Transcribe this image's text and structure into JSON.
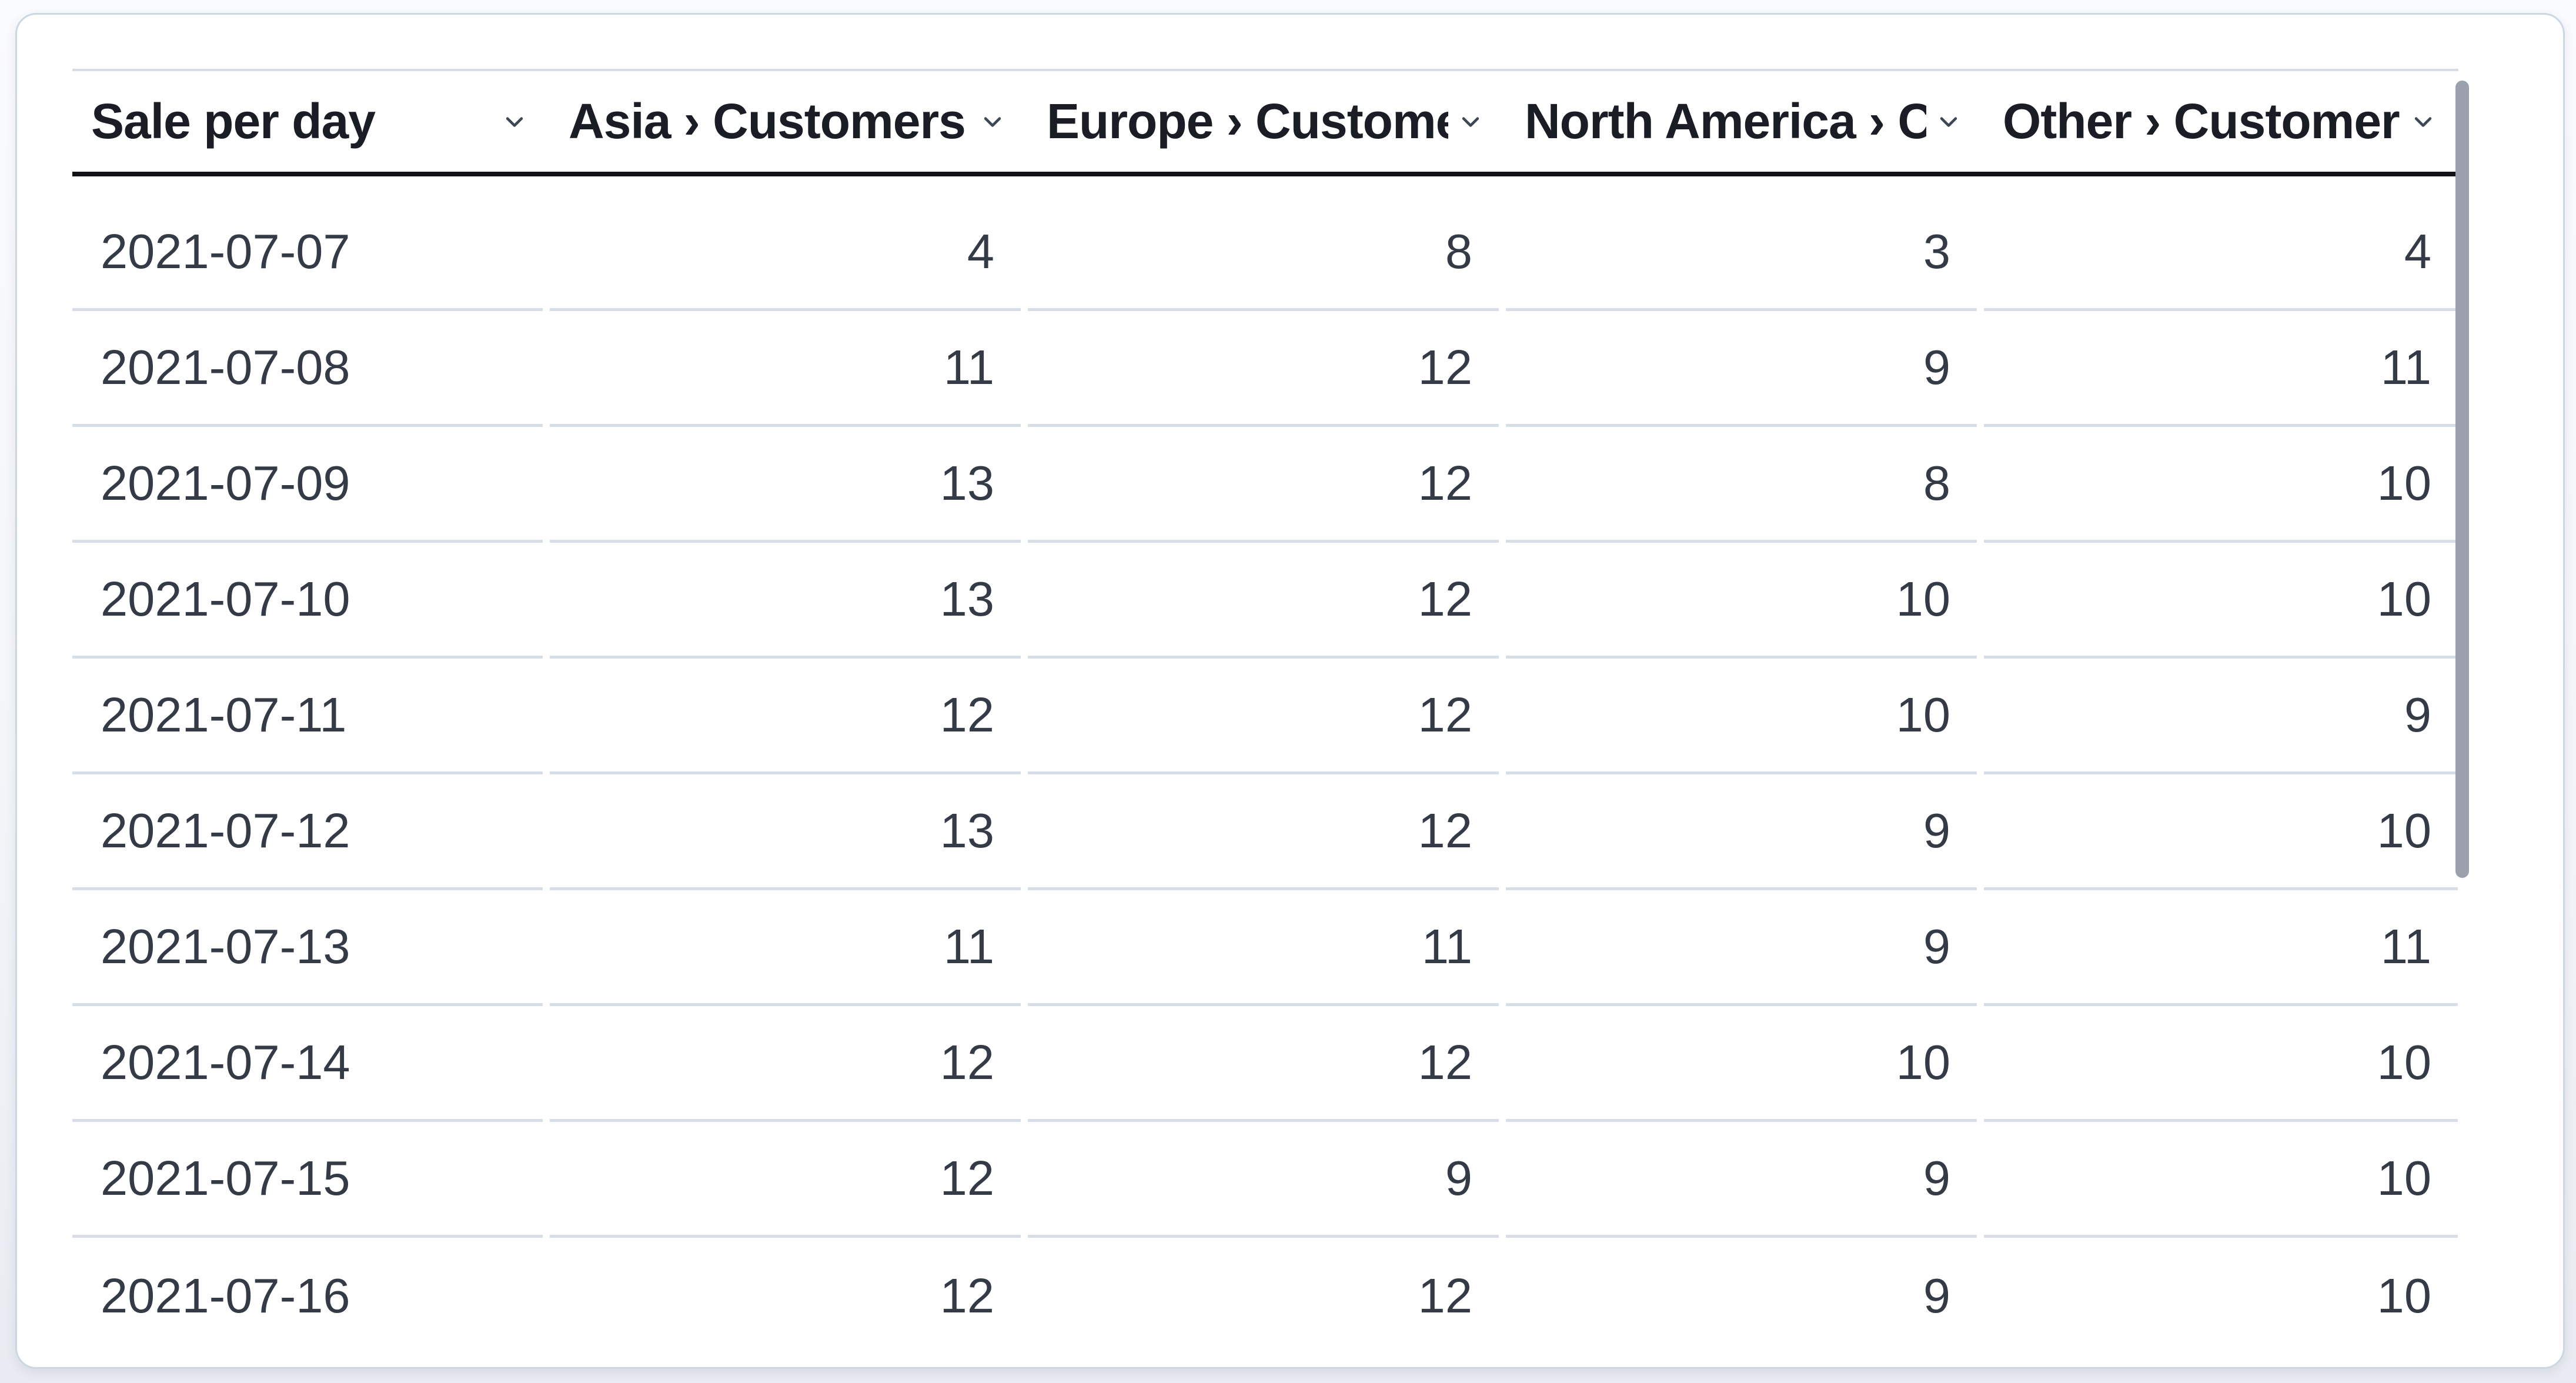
{
  "table": {
    "columns": [
      {
        "label": "Sale per day",
        "align": "left"
      },
      {
        "label": "Asia › Customers",
        "align": "right"
      },
      {
        "label": "Europe › Customers",
        "align": "right"
      },
      {
        "label": "North America › Customers",
        "align": "right"
      },
      {
        "label": "Other › Customers",
        "align": "right"
      }
    ],
    "rows": [
      {
        "date": "2021-07-07",
        "values": [
          "4",
          "8",
          "3",
          "4"
        ]
      },
      {
        "date": "2021-07-08",
        "values": [
          "11",
          "12",
          "9",
          "11"
        ]
      },
      {
        "date": "2021-07-09",
        "values": [
          "13",
          "12",
          "8",
          "10"
        ]
      },
      {
        "date": "2021-07-10",
        "values": [
          "13",
          "12",
          "10",
          "10"
        ]
      },
      {
        "date": "2021-07-11",
        "values": [
          "12",
          "12",
          "10",
          "9"
        ]
      },
      {
        "date": "2021-07-12",
        "values": [
          "13",
          "12",
          "9",
          "10"
        ]
      },
      {
        "date": "2021-07-13",
        "values": [
          "11",
          "11",
          "9",
          "11"
        ]
      },
      {
        "date": "2021-07-14",
        "values": [
          "12",
          "12",
          "10",
          "10"
        ]
      },
      {
        "date": "2021-07-15",
        "values": [
          "12",
          "9",
          "9",
          "10"
        ]
      },
      {
        "date": "2021-07-16",
        "values": [
          "12",
          "12",
          "9",
          "10"
        ]
      }
    ]
  },
  "icons": {
    "sort": "chevron-down-icon"
  },
  "colors": {
    "header_text": "#1a1d26",
    "body_text": "#343a46",
    "header_rule": "#101218",
    "row_divider": "#d8dee8",
    "card_border": "#ccd7e4",
    "scroll_thumb": "#9aa1ad",
    "chevron": "#404754"
  },
  "chart_data": {
    "type": "table",
    "title": "Sale per day",
    "categories": [
      "2021-07-07",
      "2021-07-08",
      "2021-07-09",
      "2021-07-10",
      "2021-07-11",
      "2021-07-12",
      "2021-07-13",
      "2021-07-14",
      "2021-07-15",
      "2021-07-16"
    ],
    "series": [
      {
        "name": "Asia › Customers",
        "values": [
          4,
          11,
          13,
          13,
          12,
          13,
          11,
          12,
          12,
          12
        ]
      },
      {
        "name": "Europe › Customers",
        "values": [
          8,
          12,
          12,
          12,
          12,
          12,
          11,
          12,
          9,
          12
        ]
      },
      {
        "name": "North America › Customers",
        "values": [
          3,
          9,
          8,
          10,
          10,
          9,
          9,
          10,
          9,
          9
        ]
      },
      {
        "name": "Other › Customers",
        "values": [
          4,
          11,
          10,
          10,
          9,
          10,
          11,
          10,
          10,
          10
        ]
      }
    ]
  }
}
